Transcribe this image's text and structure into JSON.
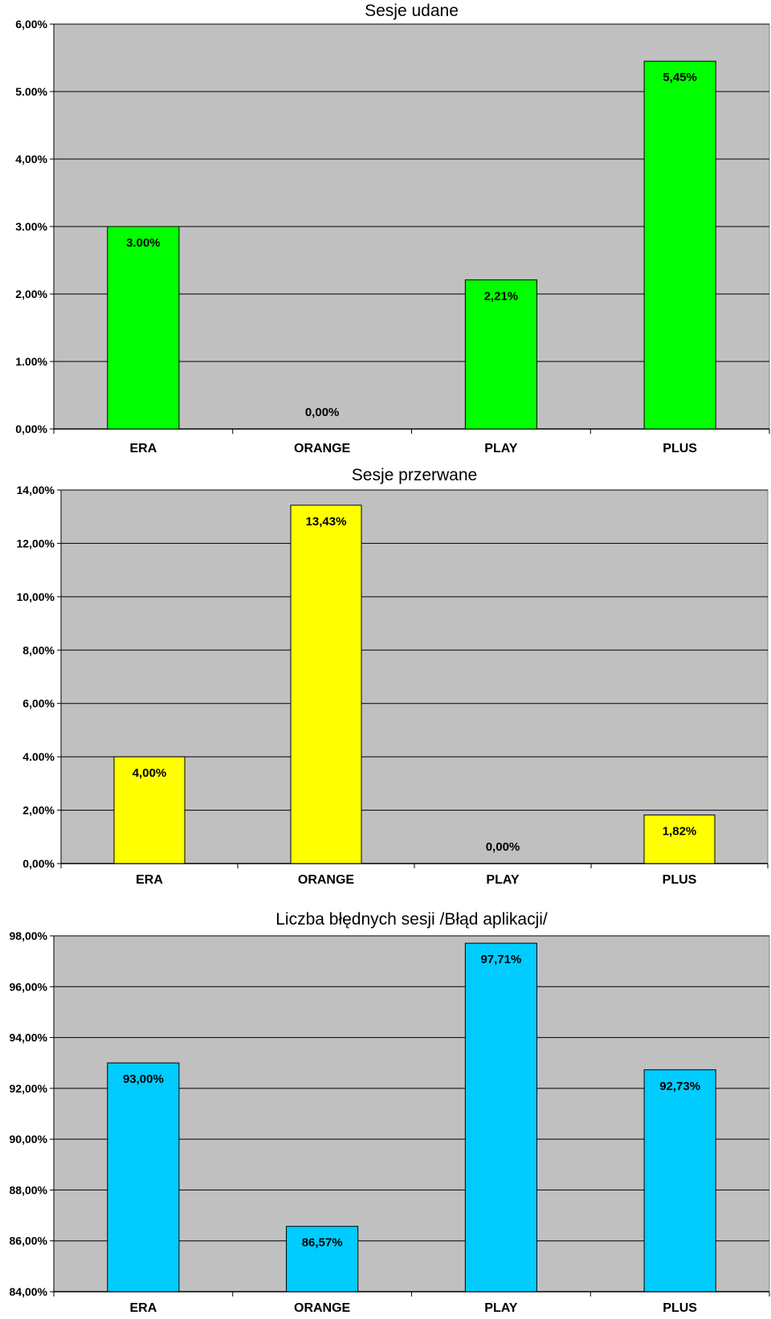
{
  "chart_data": [
    {
      "type": "bar",
      "title": "Sesje udane",
      "categories": [
        "ERA",
        "ORANGE",
        "PLAY",
        "PLUS"
      ],
      "values": [
        3.0,
        0.0,
        2.21,
        5.45
      ],
      "data_labels": [
        "3.00%",
        "0,00%",
        "2,21%",
        "5,45%"
      ],
      "ylim": [
        0,
        6
      ],
      "yticks": [
        0,
        1,
        2,
        3,
        4,
        5,
        6
      ],
      "ytick_labels": [
        "0,00%",
        "1.00%",
        "2,00%",
        "3.00%",
        "4,00%",
        "5.00%",
        "6,00%"
      ],
      "color": "#00ff00",
      "grid": true,
      "legend": "none"
    },
    {
      "type": "bar",
      "title": "Sesje przerwane",
      "categories": [
        "ERA",
        "ORANGE",
        "PLAY",
        "PLUS"
      ],
      "values": [
        4.0,
        13.43,
        0.0,
        1.82
      ],
      "data_labels": [
        "4,00%",
        "13,43%",
        "0,00%",
        "1,82%"
      ],
      "ylim": [
        0,
        14
      ],
      "yticks": [
        0,
        2,
        4,
        6,
        8,
        10,
        12,
        14
      ],
      "ytick_labels": [
        "0,00%",
        "2,00%",
        "4.00%",
        "6,00%",
        "8,00%",
        "10,00%",
        "12,00%",
        "14,00%"
      ],
      "color": "#ffff00",
      "grid": true,
      "legend": "none"
    },
    {
      "type": "bar",
      "title": "Liczba błędnych sesji /Błąd aplikacji/",
      "categories": [
        "ERA",
        "ORANGE",
        "PLAY",
        "PLUS"
      ],
      "values": [
        93.0,
        86.57,
        97.71,
        92.73
      ],
      "data_labels": [
        "93,00%",
        "86,57%",
        "97,71%",
        "92,73%"
      ],
      "ylim": [
        84,
        98
      ],
      "yticks": [
        84,
        86,
        88,
        90,
        92,
        94,
        96,
        98
      ],
      "ytick_labels": [
        "84,00%",
        "86,00%",
        "88,00%",
        "90,00%",
        "92,00%",
        "94,00%",
        "96,00%",
        "98,00%"
      ],
      "color": "#00ccff",
      "grid": true,
      "legend": "none"
    }
  ]
}
